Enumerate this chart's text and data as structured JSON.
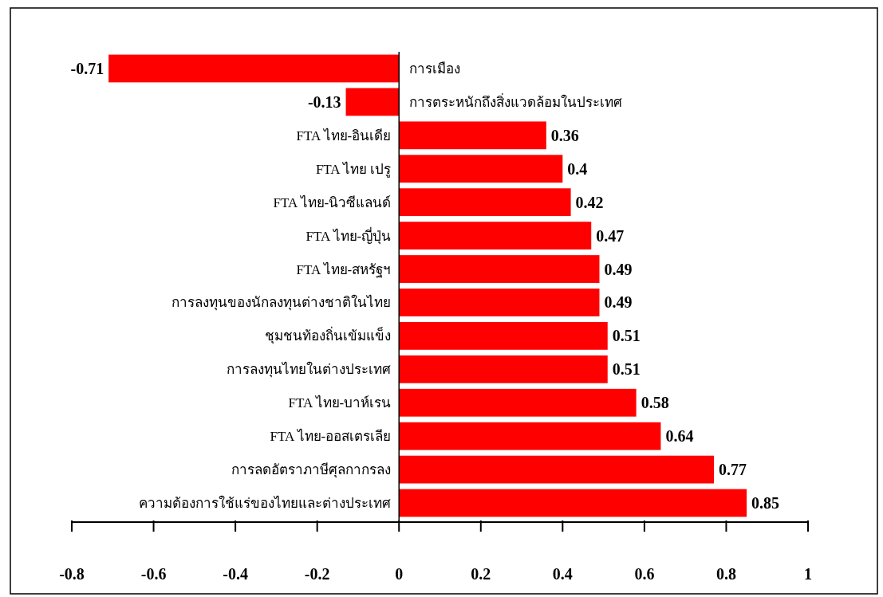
{
  "chart_data": {
    "type": "bar",
    "orientation": "horizontal",
    "data_labels": true,
    "grid": false,
    "categories": [
      "การเมือง",
      "การตระหนักถึงสิ่งแวดล้อมในประเทศ",
      "FTA ไทย-อินเดีย",
      "FTA ไทย เปรู",
      "FTA ไทย-นิวซีแลนด์",
      "FTA ไทย-ญี่ปุ่น",
      "FTA ไทย-สหรัฐฯ",
      "การลงทุนของนักลงทุนต่างชาติในไทย",
      "ชุมชนท้องถิ่นเข้มแข็ง",
      "การลงทุนไทยในต่างประเทศ",
      "FTA ไทย-บาห์เรน",
      "FTA ไทย-ออสเตรเลีย",
      "การลดอัตราภาษีศุลกากรลง",
      "ความต้องการใช้แร่ของไทยและต่างประเทศ"
    ],
    "values": [
      -0.71,
      -0.13,
      0.36,
      0.4,
      0.42,
      0.47,
      0.49,
      0.49,
      0.51,
      0.51,
      0.58,
      0.64,
      0.77,
      0.85
    ],
    "color": "#ff0000",
    "xlim": [
      -0.8,
      1
    ],
    "xticks": [
      -0.8,
      -0.6,
      -0.4,
      -0.2,
      0,
      0.2,
      0.4,
      0.6,
      0.8,
      1
    ]
  }
}
